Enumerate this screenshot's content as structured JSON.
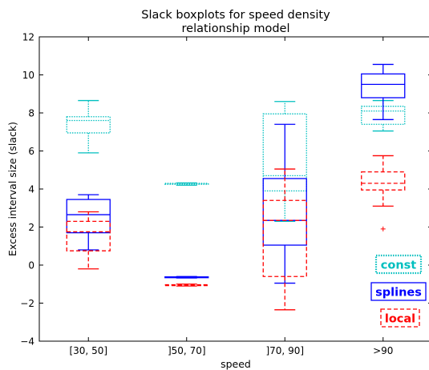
{
  "chart_data": {
    "type": "boxplot",
    "title": [
      "Slack boxplots for speed density",
      "relationship model"
    ],
    "xlabel": "speed",
    "ylabel": "Excess interval size (slack)",
    "categories": [
      "[30, 50]",
      "]50, 70]",
      "]70, 90]",
      ">90"
    ],
    "ylim": [
      -4,
      12
    ],
    "yticks": [
      -4,
      -2,
      0,
      2,
      4,
      6,
      8,
      10,
      12
    ],
    "series": [
      {
        "name": "const",
        "color": "#00bfbf",
        "linestyle": "dotted",
        "boxes": [
          {
            "whisker_low": 5.9,
            "q1": 6.95,
            "median": 7.6,
            "q3": 7.8,
            "whisker_high": 8.65,
            "outliers": []
          },
          {
            "whisker_low": 4.2,
            "q1": 4.25,
            "median": 4.27,
            "q3": 4.3,
            "whisker_high": 4.32,
            "outliers": []
          },
          {
            "whisker_low": 2.3,
            "q1": 3.9,
            "median": 4.7,
            "q3": 7.95,
            "whisker_high": 8.6,
            "outliers": []
          },
          {
            "whisker_low": 7.05,
            "q1": 7.4,
            "median": 8.1,
            "q3": 8.35,
            "whisker_high": 8.65,
            "outliers": []
          }
        ]
      },
      {
        "name": "splines",
        "color": "#0000ff",
        "linestyle": "solid",
        "boxes": [
          {
            "whisker_low": 0.8,
            "q1": 1.7,
            "median": 2.65,
            "q3": 3.45,
            "whisker_high": 3.7,
            "outliers": []
          },
          {
            "whisker_low": -0.68,
            "q1": -0.66,
            "median": -0.64,
            "q3": -0.62,
            "whisker_high": -0.6,
            "outliers": []
          },
          {
            "whisker_low": -0.95,
            "q1": 1.05,
            "median": 2.35,
            "q3": 4.55,
            "whisker_high": 7.4,
            "outliers": []
          },
          {
            "whisker_low": 7.65,
            "q1": 8.8,
            "median": 9.5,
            "q3": 10.05,
            "whisker_high": 10.55,
            "outliers": []
          }
        ]
      },
      {
        "name": "local",
        "color": "#ff0000",
        "linestyle": "dashed",
        "boxes": [
          {
            "whisker_low": -0.2,
            "q1": 0.75,
            "median": 1.75,
            "q3": 2.3,
            "whisker_high": 2.8,
            "outliers": []
          },
          {
            "whisker_low": -1.1,
            "q1": -1.08,
            "median": -1.05,
            "q3": -1.03,
            "whisker_high": -1.0,
            "outliers": []
          },
          {
            "whisker_low": -2.35,
            "q1": -0.6,
            "median": 2.35,
            "q3": 3.4,
            "whisker_high": 5.05,
            "outliers": []
          },
          {
            "whisker_low": 3.1,
            "q1": 3.95,
            "median": 4.3,
            "q3": 4.9,
            "whisker_high": 5.75,
            "outliers": [
              1.9
            ]
          }
        ]
      }
    ],
    "legend_placement": "bottom-right",
    "grid": false
  }
}
